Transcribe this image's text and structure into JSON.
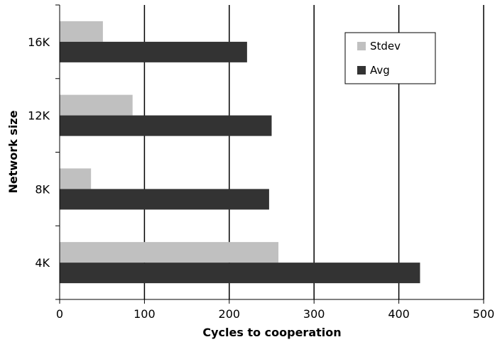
{
  "chart_data": {
    "type": "bar",
    "orientation": "horizontal",
    "categories": [
      "4K",
      "8K",
      "12K",
      "16K"
    ],
    "series": [
      {
        "name": "Stdev",
        "color": "#c0c0c0",
        "values": [
          258,
          37,
          86,
          51
        ]
      },
      {
        "name": "Avg",
        "color": "#333333",
        "values": [
          425,
          247,
          250,
          221
        ]
      }
    ],
    "xlabel": "Cycles to cooperation",
    "ylabel": "Network size",
    "xlim": [
      0,
      500
    ],
    "xticks": [
      "0",
      "100",
      "200",
      "300",
      "400",
      "500"
    ],
    "grid": "vertical",
    "legend": "top-right"
  }
}
